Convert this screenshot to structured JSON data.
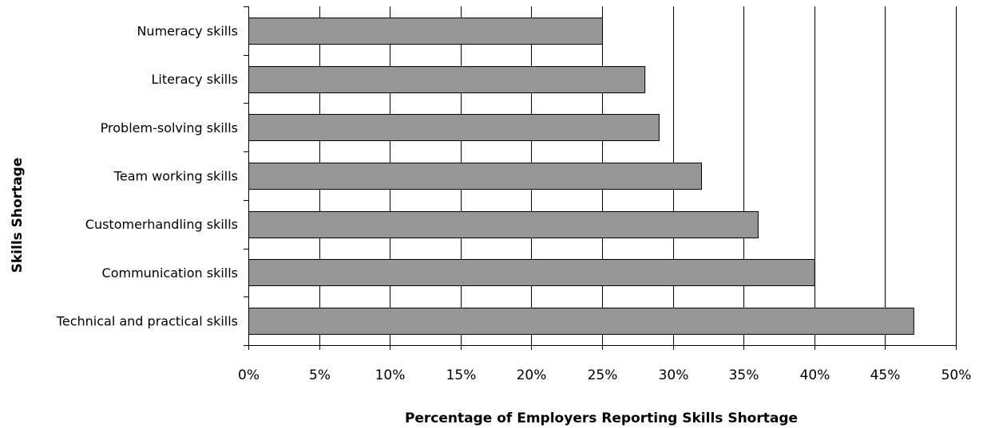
{
  "chart_data": {
    "type": "bar",
    "orientation": "horizontal",
    "title": "",
    "xlabel": "Percentage of Employers Reporting Skills Shortage",
    "ylabel": "Skills Shortage",
    "categories": [
      "Numeracy skills",
      "Literacy skills",
      "Problem-solving skills",
      "Team working skills",
      "Customerhandling skills",
      "Communication skills",
      "Technical and practical skills"
    ],
    "values": [
      25,
      28,
      29,
      32,
      36,
      40,
      47
    ],
    "xlim": [
      0,
      50
    ],
    "x_ticks": [
      0,
      5,
      10,
      15,
      20,
      25,
      30,
      35,
      40,
      45,
      50
    ],
    "x_tick_labels": [
      "0%",
      "5%",
      "10%",
      "15%",
      "20%",
      "25%",
      "30%",
      "35%",
      "40%",
      "45%",
      "50%"
    ],
    "grid": "vertical major gridlines",
    "legend": "none",
    "colors": {
      "bar": "#969696",
      "bar_outline": "#000000",
      "grid": "#000000"
    }
  }
}
